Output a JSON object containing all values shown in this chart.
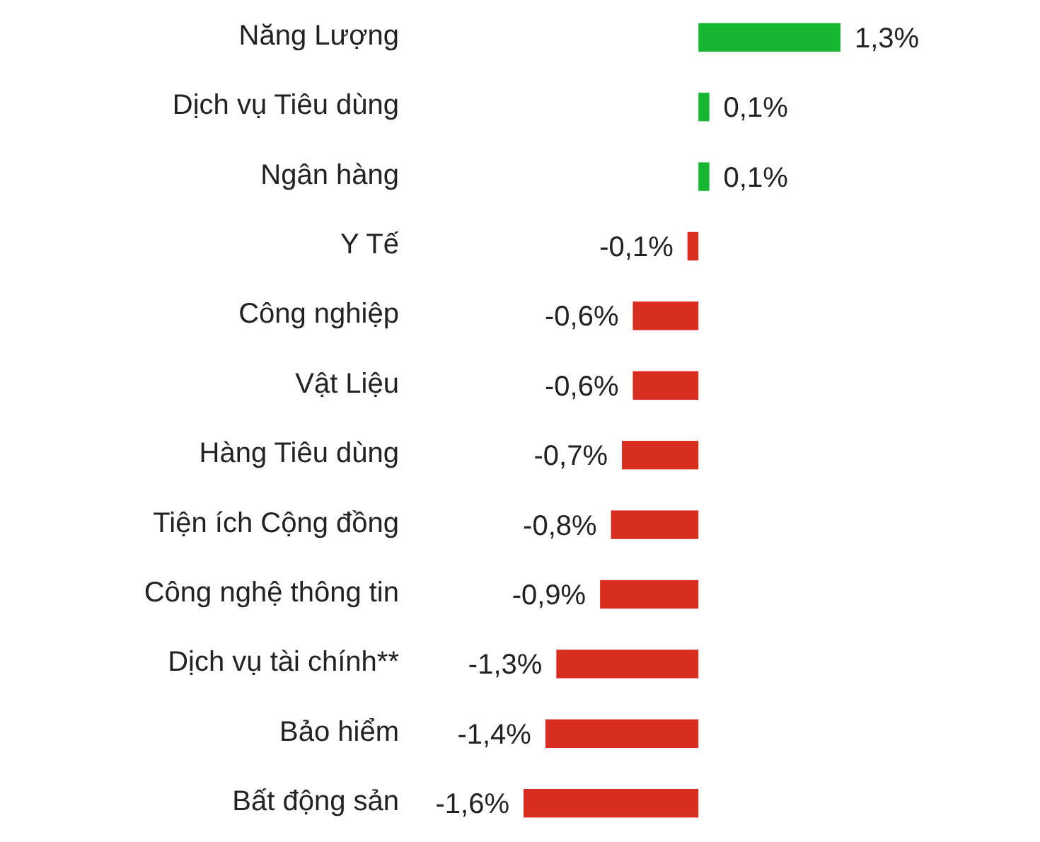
{
  "chart_data": {
    "type": "bar",
    "orientation": "horizontal",
    "categories": [
      "Năng Lượng",
      "Dịch vụ Tiêu dùng",
      "Ngân hàng",
      "Y Tế",
      "Công nghiệp",
      "Vật Liệu",
      "Hàng Tiêu dùng",
      "Tiện ích Cộng đồng",
      "Công nghệ thông tin",
      "Dịch vụ tài chính**",
      "Bảo hiểm",
      "Bất động sản"
    ],
    "values": [
      1.3,
      0.1,
      0.1,
      -0.1,
      -0.6,
      -0.6,
      -0.7,
      -0.8,
      -0.9,
      -1.3,
      -1.4,
      -1.6
    ],
    "value_labels": [
      "1,3%",
      "0,1%",
      "0,1%",
      "-0,1%",
      "-0,6%",
      "-0,6%",
      "-0,7%",
      "-0,8%",
      "-0,9%",
      "-1,3%",
      "-1,4%",
      "-1,6%"
    ],
    "colors": [
      "#16b832",
      "#16b832",
      "#16b832",
      "#d92d20",
      "#d92d20",
      "#d92d20",
      "#d92d20",
      "#d92d20",
      "#d92d20",
      "#d92d20",
      "#d92d20",
      "#d92d20"
    ]
  }
}
